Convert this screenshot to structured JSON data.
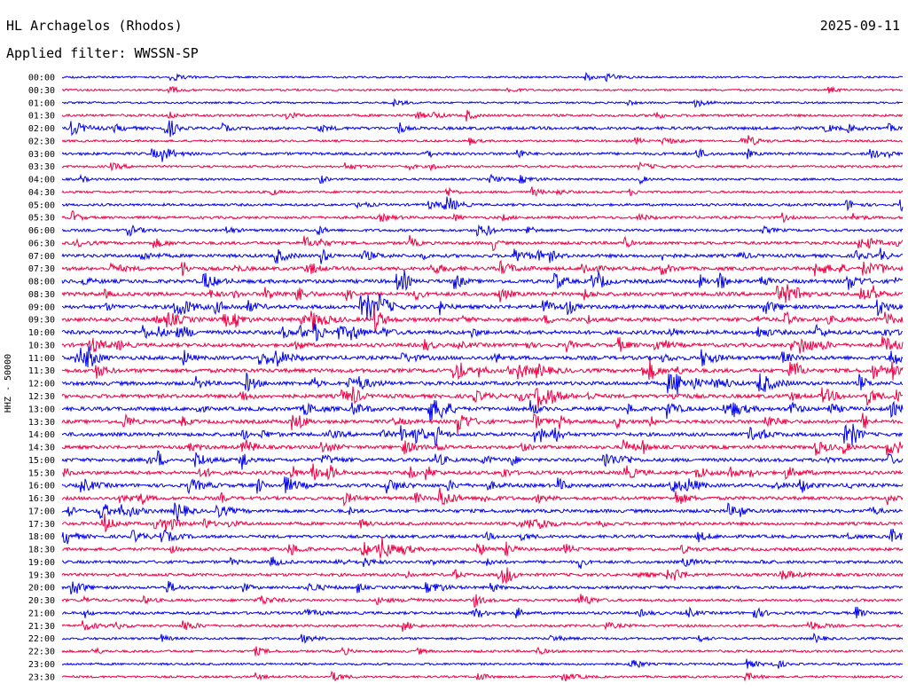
{
  "header": {
    "station": "HL Archagelos (Rhodos)",
    "date": "2025-09-11",
    "filter": "Applied filter: WWSSN-SP"
  },
  "chart_data": {
    "type": "line",
    "title": "HL Archagelos (Rhodos)",
    "subtitle": "Applied filter: WWSSN-SP",
    "date": "2025-09-11",
    "ylabel": "HHZ - 50000",
    "xlabel": "",
    "row_labels": [
      "00:00",
      "00:30",
      "01:00",
      "01:30",
      "02:00",
      "02:30",
      "03:00",
      "03:30",
      "04:00",
      "04:30",
      "05:00",
      "05:30",
      "06:00",
      "06:30",
      "07:00",
      "07:30",
      "08:00",
      "08:30",
      "09:00",
      "09:30",
      "10:00",
      "10:30",
      "11:00",
      "11:30",
      "12:00",
      "12:30",
      "13:00",
      "13:30",
      "14:00",
      "14:30",
      "15:00",
      "15:30",
      "16:00",
      "16:30",
      "17:00",
      "17:30",
      "18:00",
      "18:30",
      "19:00",
      "19:30",
      "20:00",
      "20:30",
      "21:00",
      "21:30",
      "22:00",
      "22:30",
      "23:00",
      "23:30"
    ],
    "row_activity": [
      0.15,
      0.15,
      0.15,
      0.35,
      0.55,
      0.25,
      0.45,
      0.25,
      0.25,
      0.3,
      0.35,
      0.4,
      0.4,
      0.55,
      0.65,
      0.7,
      0.8,
      0.8,
      0.8,
      0.85,
      0.85,
      0.8,
      0.8,
      0.85,
      0.8,
      0.8,
      0.8,
      0.75,
      0.75,
      0.7,
      0.7,
      0.7,
      0.7,
      0.65,
      0.65,
      0.6,
      0.55,
      0.55,
      0.5,
      0.5,
      0.5,
      0.45,
      0.45,
      0.35,
      0.3,
      0.3,
      0.25,
      0.25
    ],
    "series_colors": [
      "#0000ee",
      "#ee0044"
    ],
    "grid": false,
    "legend": "none"
  }
}
